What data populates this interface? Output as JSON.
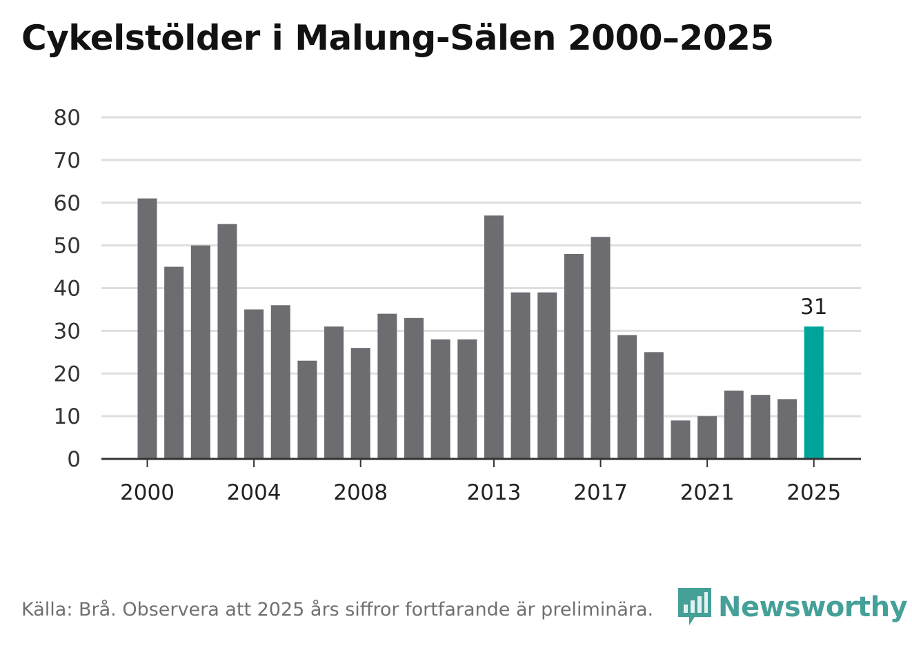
{
  "title": "Cykelstölder i Malung-Sälen 2000–2025",
  "footer": "Källa: Brå. Observera att 2025 års siffror fortfarande är preliminära.",
  "brand": "Newsworthy",
  "colors": {
    "bar": "#6d6c71",
    "highlight": "#00a49a",
    "grid": "#dedede",
    "axis": "#333333",
    "brand": "#45a098"
  },
  "icons": [
    "newsworthy-logo-icon"
  ],
  "chart_data": {
    "type": "bar",
    "title": "Cykelstölder i Malung-Sälen 2000–2025",
    "xlabel": "",
    "ylabel": "",
    "ylim": [
      0,
      80
    ],
    "yticks": [
      0,
      10,
      20,
      30,
      40,
      50,
      60,
      70,
      80
    ],
    "categories": [
      "2000",
      "2001",
      "2002",
      "2003",
      "2004",
      "2005",
      "2006",
      "2007",
      "2008",
      "2009",
      "2010",
      "2011",
      "2012",
      "2013",
      "2014",
      "2015",
      "2016",
      "2017",
      "2018",
      "2019",
      "2020",
      "2021",
      "2022",
      "2023",
      "2024",
      "2025"
    ],
    "values": [
      61,
      45,
      50,
      55,
      35,
      36,
      23,
      31,
      26,
      34,
      33,
      28,
      28,
      57,
      39,
      39,
      48,
      52,
      29,
      25,
      9,
      10,
      16,
      15,
      14,
      31
    ],
    "xtick_labels": [
      "2000",
      "2004",
      "2008",
      "2013",
      "2017",
      "2021",
      "2025"
    ],
    "highlight": "2025",
    "data_labels": [
      {
        "category": "2025",
        "text": "31"
      }
    ],
    "grid": true,
    "legend": "none"
  }
}
